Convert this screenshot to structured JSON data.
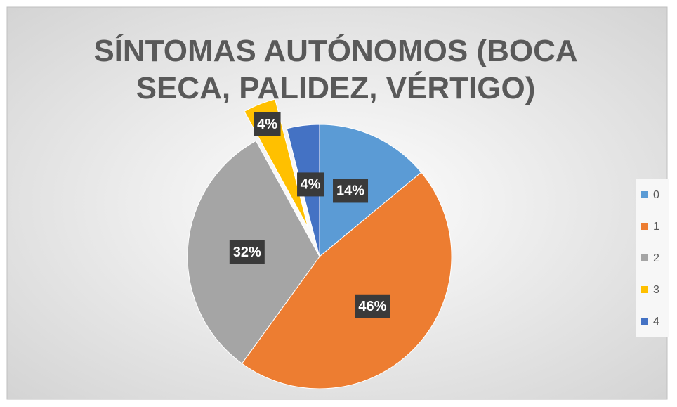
{
  "chart_data": {
    "type": "pie",
    "title": "SÍNTOMAS AUTÓNOMOS (BOCA SECA, PALIDEZ, VÉRTIGO)",
    "categories": [
      "0",
      "1",
      "2",
      "3",
      "4"
    ],
    "values": [
      14,
      46,
      32,
      4,
      4
    ],
    "value_labels": [
      "14%",
      "46%",
      "32%",
      "4%",
      "4%"
    ],
    "colors": [
      "#5b9bd5",
      "#ed7d31",
      "#a5a5a5",
      "#ffc000",
      "#4472c4"
    ],
    "legend": "right"
  }
}
